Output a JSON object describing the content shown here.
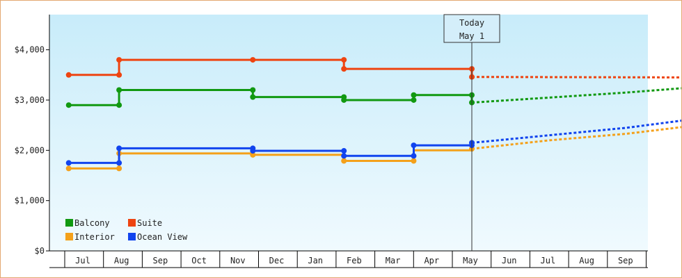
{
  "chart_data": {
    "type": "line",
    "line_style": "step",
    "x_tick_labels": [
      "Jul",
      "Aug",
      "Sep",
      "Oct",
      "Nov",
      "Dec",
      "Jan",
      "Feb",
      "Mar",
      "Apr",
      "May",
      "Jun",
      "Jul",
      "Aug",
      "Sep"
    ],
    "y_tick_labels": [
      "$0",
      "$1,000",
      "$2,000",
      "$3,000",
      "$4,000"
    ],
    "ylim": [
      0,
      4700
    ],
    "yticks": [
      0,
      1000,
      2000,
      3000,
      4000
    ],
    "grid": false,
    "legend_position": "bottom-left",
    "today_marker": {
      "line1": "Today",
      "line2": "May 1",
      "x": 10.0
    },
    "series": [
      {
        "name": "Balcony",
        "color": "#119911",
        "steps": [
          [
            -0.4,
            2900
          ],
          [
            0.9,
            2900
          ],
          [
            0.9,
            3200
          ],
          [
            4.35,
            3200
          ],
          [
            4.35,
            3060
          ],
          [
            6.7,
            3060
          ],
          [
            6.7,
            3000
          ],
          [
            8.5,
            3000
          ],
          [
            8.5,
            3100
          ],
          [
            10.0,
            3100
          ],
          [
            10.0,
            2950
          ]
        ],
        "markers": [
          [
            -0.4,
            2900
          ],
          [
            0.9,
            2900
          ],
          [
            0.9,
            3200
          ],
          [
            4.35,
            3200
          ],
          [
            4.35,
            3060
          ],
          [
            6.7,
            3060
          ],
          [
            6.7,
            3000
          ],
          [
            8.5,
            3000
          ],
          [
            8.5,
            3100
          ],
          [
            10.0,
            3100
          ],
          [
            10.0,
            2950
          ]
        ],
        "forecast": [
          [
            10.0,
            2950
          ],
          [
            12.0,
            3050
          ],
          [
            14.0,
            3150
          ],
          [
            15.5,
            3240
          ]
        ]
      },
      {
        "name": "Suite",
        "color": "#ee4411",
        "steps": [
          [
            -0.4,
            3500
          ],
          [
            0.9,
            3500
          ],
          [
            0.9,
            3800
          ],
          [
            4.35,
            3800
          ],
          [
            6.7,
            3800
          ],
          [
            6.7,
            3620
          ],
          [
            10.0,
            3620
          ],
          [
            10.0,
            3460
          ]
        ],
        "markers": [
          [
            -0.4,
            3500
          ],
          [
            0.9,
            3500
          ],
          [
            0.9,
            3800
          ],
          [
            4.35,
            3800
          ],
          [
            6.7,
            3800
          ],
          [
            6.7,
            3620
          ],
          [
            10.0,
            3620
          ],
          [
            10.0,
            3460
          ]
        ],
        "forecast": [
          [
            10.0,
            3460
          ],
          [
            15.5,
            3450
          ]
        ]
      },
      {
        "name": "Interior",
        "color": "#f4a11b",
        "steps": [
          [
            -0.4,
            1640
          ],
          [
            0.9,
            1640
          ],
          [
            0.9,
            1940
          ],
          [
            4.35,
            1940
          ],
          [
            4.35,
            1910
          ],
          [
            6.7,
            1910
          ],
          [
            6.7,
            1790
          ],
          [
            8.5,
            1790
          ],
          [
            8.5,
            2000
          ],
          [
            10.0,
            2000
          ],
          [
            10.0,
            2030
          ]
        ],
        "markers": [
          [
            -0.4,
            1640
          ],
          [
            0.9,
            1640
          ],
          [
            0.9,
            1940
          ],
          [
            4.35,
            1910
          ],
          [
            6.7,
            1790
          ],
          [
            8.5,
            1790
          ],
          [
            10.0,
            2030
          ]
        ],
        "forecast": [
          [
            10.0,
            2030
          ],
          [
            12.0,
            2200
          ],
          [
            14.0,
            2330
          ],
          [
            15.5,
            2470
          ]
        ]
      },
      {
        "name": "Ocean View",
        "color": "#1144ee",
        "steps": [
          [
            -0.4,
            1750
          ],
          [
            0.9,
            1750
          ],
          [
            0.9,
            2040
          ],
          [
            4.35,
            2040
          ],
          [
            4.35,
            1990
          ],
          [
            6.7,
            1990
          ],
          [
            6.7,
            1890
          ],
          [
            8.5,
            1890
          ],
          [
            8.5,
            2100
          ],
          [
            10.0,
            2100
          ],
          [
            10.0,
            2150
          ]
        ],
        "markers": [
          [
            -0.4,
            1750
          ],
          [
            0.9,
            1750
          ],
          [
            0.9,
            2040
          ],
          [
            4.35,
            2040
          ],
          [
            4.35,
            1990
          ],
          [
            6.7,
            1990
          ],
          [
            6.7,
            1890
          ],
          [
            8.5,
            1890
          ],
          [
            8.5,
            2100
          ],
          [
            10.0,
            2100
          ],
          [
            10.0,
            2150
          ]
        ],
        "forecast": [
          [
            10.0,
            2150
          ],
          [
            12.0,
            2300
          ],
          [
            14.0,
            2450
          ],
          [
            15.5,
            2600
          ]
        ]
      }
    ],
    "legend": [
      {
        "name": "Balcony",
        "color": "#119911"
      },
      {
        "name": "Suite",
        "color": "#ee4411"
      },
      {
        "name": "Interior",
        "color": "#f4a11b"
      },
      {
        "name": "Ocean View",
        "color": "#1144ee"
      }
    ]
  }
}
